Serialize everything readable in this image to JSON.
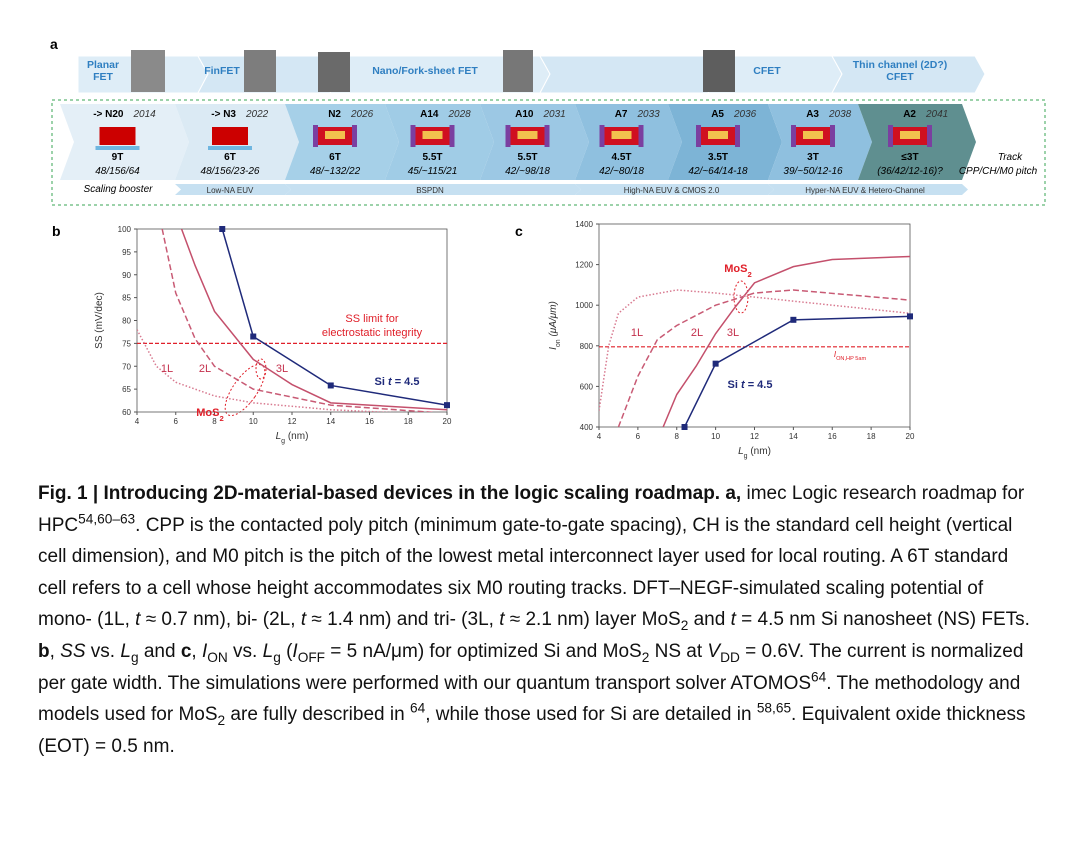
{
  "roadmap": {
    "label": "a",
    "generations": [
      [
        "Planar",
        "FET"
      ],
      [
        "FinFET"
      ],
      [
        "Nano/Fork-sheet FET"
      ],
      [
        "CFET"
      ],
      [
        "Thin channel (2D?)",
        "CFET"
      ]
    ],
    "nodes": [
      {
        "name": "-> N20",
        "year": "2014",
        "track": "9T",
        "pitch": "48/156/64"
      },
      {
        "name": "-> N3",
        "year": "2022",
        "track": "6T",
        "pitch": "48/156/23-26"
      },
      {
        "name": "N2",
        "year": "2026",
        "track": "6T",
        "pitch": "48/~132/22"
      },
      {
        "name": "A14",
        "year": "2028",
        "track": "5.5T",
        "pitch": "45/~115/21"
      },
      {
        "name": "A10",
        "year": "2031",
        "track": "5.5T",
        "pitch": "42/~98/18"
      },
      {
        "name": "A7",
        "year": "2033",
        "track": "4.5T",
        "pitch": "42/~80/18"
      },
      {
        "name": "A5",
        "year": "2036",
        "track": "3.5T",
        "pitch": "42/~64/14-18"
      },
      {
        "name": "A3",
        "year": "2038",
        "track": "3T",
        "pitch": "39/~50/12-16"
      },
      {
        "name": "A2",
        "year": "2041",
        "track": "≤3T",
        "pitch": "(36/42/12-16)?"
      }
    ],
    "row_labels": [
      "Track",
      "CPP/CH/M0 pitch"
    ],
    "boosters": [
      "Scaling booster",
      "Low-NA EUV",
      "BSPDN",
      "High-NA EUV & CMOS 2.0",
      "Hyper-NA EUV & Hetero-Channel"
    ]
  },
  "chart_data": [
    {
      "type": "line",
      "label": "b",
      "xlabel": [
        {
          "text": "L",
          "style": "i"
        },
        {
          "text": "g",
          "style": "sub"
        },
        {
          "text": " (nm)"
        }
      ],
      "ylabel": [
        {
          "text": "SS (mV/dec)"
        }
      ],
      "xlim": [
        4,
        20
      ],
      "xticks": [
        4,
        6,
        8,
        10,
        12,
        14,
        16,
        18,
        20
      ],
      "ylim": [
        60,
        100
      ],
      "yticks": [
        60,
        65,
        70,
        75,
        80,
        85,
        90,
        95,
        100
      ],
      "hline": 75,
      "hline_color": "#e0202a",
      "series": [
        {
          "color": "#1f2a7a",
          "dash": "solid",
          "marker": "square",
          "x": [
            8.4,
            10,
            14,
            20
          ],
          "values": [
            100,
            76.5,
            65.8,
            61.5
          ]
        },
        {
          "color": "#c4506c",
          "dash": "solid",
          "x": [
            6.3,
            7,
            8,
            10,
            12,
            14,
            20
          ],
          "values": [
            100,
            92,
            82,
            71.5,
            66,
            62,
            60.5
          ]
        },
        {
          "color": "#c85a74",
          "dash": "dashed",
          "x": [
            5.3,
            6,
            7,
            8,
            10,
            14,
            20
          ],
          "values": [
            100,
            86,
            76,
            70,
            65,
            61.5,
            59.7
          ]
        },
        {
          "color": "#d87a90",
          "dash": "dotted",
          "x": [
            4,
            5,
            6,
            8,
            10,
            14,
            20
          ],
          "values": [
            78,
            70,
            66.5,
            63.5,
            62,
            60.5,
            59.3
          ]
        }
      ],
      "annotations": [
        {
          "color": "#e0202a",
          "runs": [
            {
              "text": "SS limit for"
            }
          ]
        },
        {
          "color": "#e0202a",
          "runs": [
            {
              "text": "electrostatic integrity"
            }
          ]
        },
        {
          "color": "#c4304c",
          "runs": [
            {
              "text": "1L"
            }
          ]
        },
        {
          "color": "#c4304c",
          "runs": [
            {
              "text": "2L"
            }
          ]
        },
        {
          "color": "#c4304c",
          "runs": [
            {
              "text": "3L"
            }
          ]
        },
        {
          "color": "#1f2a7a",
          "bold": true,
          "runs": [
            {
              "text": "Si "
            },
            {
              "text": "t",
              "style": "i"
            },
            {
              "text": " = 4.5"
            }
          ]
        },
        {
          "color": "#e0202a",
          "bold": true,
          "runs": [
            {
              "text": "MoS"
            },
            {
              "text": "2",
              "style": "sub"
            }
          ]
        }
      ]
    },
    {
      "type": "line",
      "label": "c",
      "xlabel": [
        {
          "text": "L",
          "style": "i"
        },
        {
          "text": "g",
          "style": "sub"
        },
        {
          "text": " (nm)"
        }
      ],
      "ylabel": [
        {
          "text": "I",
          "style": "i"
        },
        {
          "text": "on",
          "style": "sub"
        },
        {
          "text": " (μA/μm)",
          "style": "i"
        }
      ],
      "xlim": [
        4,
        20
      ],
      "xticks": [
        4,
        6,
        8,
        10,
        12,
        14,
        16,
        18,
        20
      ],
      "ylim": [
        400,
        1400
      ],
      "yticks": [
        400,
        600,
        800,
        1000,
        1200,
        1400
      ],
      "hline": 795,
      "hline_color": "#e0202a",
      "series": [
        {
          "color": "#1f2a7a",
          "dash": "solid",
          "marker": "square",
          "x": [
            8.4,
            10,
            14,
            20
          ],
          "values": [
            400,
            712,
            928,
            945
          ]
        },
        {
          "color": "#c4506c",
          "dash": "solid",
          "x": [
            7.3,
            8,
            9,
            10,
            11,
            12,
            14,
            16,
            20
          ],
          "values": [
            400,
            560,
            700,
            860,
            990,
            1110,
            1190,
            1225,
            1240
          ]
        },
        {
          "color": "#c85a74",
          "dash": "dashed",
          "x": [
            5,
            6,
            7,
            8,
            10,
            12,
            14,
            20
          ],
          "values": [
            400,
            650,
            830,
            900,
            1000,
            1060,
            1075,
            1025
          ]
        },
        {
          "color": "#d87a90",
          "dash": "dotted",
          "x": [
            4,
            4.5,
            5,
            6,
            8,
            10,
            14,
            20
          ],
          "values": [
            480,
            800,
            960,
            1040,
            1075,
            1060,
            1020,
            960
          ]
        }
      ],
      "annotations": [
        {
          "color": "#e0202a",
          "bold": true,
          "runs": [
            {
              "text": "MoS"
            },
            {
              "text": "2",
              "style": "sub"
            }
          ]
        },
        {
          "color": "#c4304c",
          "runs": [
            {
              "text": "1L"
            }
          ]
        },
        {
          "color": "#c4304c",
          "runs": [
            {
              "text": "2L"
            }
          ]
        },
        {
          "color": "#c4304c",
          "runs": [
            {
              "text": "3L"
            }
          ]
        },
        {
          "color": "#e0202a",
          "small": true,
          "runs": [
            {
              "text": "I",
              "style": "i"
            },
            {
              "text": "ON,HP 5am",
              "style": "sub"
            }
          ]
        },
        {
          "color": "#1f2a7a",
          "bold": true,
          "runs": [
            {
              "text": "Si "
            },
            {
              "text": "t",
              "style": "i"
            },
            {
              "text": " = 4.5"
            }
          ]
        }
      ]
    }
  ],
  "caption": {
    "runs": [
      {
        "text": "Fig. 1 | Introducing 2D-material-based devices in the logic scaling roadmap. a,",
        "style": "b"
      },
      {
        "text": " imec Logic research roadmap for HPC"
      },
      {
        "text": "54,60–63",
        "style": "sup"
      },
      {
        "text": ". CPP is the contacted poly pitch (minimum gate-to-gate spacing), CH is the standard cell height (vertical cell dimension), and M0 pitch is the pitch of the lowest metal interconnect layer used for local routing. A 6T standard cell refers to a cell whose height accommodates six M0 routing tracks. DFT–NEGF-simulated scaling potential of mono- (1L, "
      },
      {
        "text": "t",
        "style": "i"
      },
      {
        "text": " ≈ 0.7 nm), bi- (2L, "
      },
      {
        "text": "t",
        "style": "i"
      },
      {
        "text": " ≈ 1.4 nm) and tri- (3L, "
      },
      {
        "text": "t",
        "style": "i"
      },
      {
        "text": " ≈ 2.1 nm) layer MoS"
      },
      {
        "text": "2",
        "style": "sub"
      },
      {
        "text": " and "
      },
      {
        "text": "t",
        "style": "i"
      },
      {
        "text": " = 4.5 nm Si nanosheet (NS) FETs. "
      },
      {
        "text": "b",
        "style": "b"
      },
      {
        "text": ", "
      },
      {
        "text": "SS",
        "style": "i"
      },
      {
        "text": " vs. "
      },
      {
        "text": "L",
        "style": "i"
      },
      {
        "text": "g",
        "style": "sub"
      },
      {
        "text": " and "
      },
      {
        "text": "c",
        "style": "b"
      },
      {
        "text": ", "
      },
      {
        "text": "I",
        "style": "i"
      },
      {
        "text": "ON",
        "style": "sub"
      },
      {
        "text": " vs. "
      },
      {
        "text": "L",
        "style": "i"
      },
      {
        "text": "g",
        "style": "sub"
      },
      {
        "text": " ("
      },
      {
        "text": "I",
        "style": "i"
      },
      {
        "text": "OFF",
        "style": "sub"
      },
      {
        "text": " = 5 nA/μm) for optimized Si and MoS"
      },
      {
        "text": "2",
        "style": "sub"
      },
      {
        "text": " NS at "
      },
      {
        "text": "V",
        "style": "i"
      },
      {
        "text": "DD",
        "style": "sub"
      },
      {
        "text": " = 0.6V. The current is normalized per gate width. The simulations were performed with our quantum transport solver ATOMOS"
      },
      {
        "text": "64",
        "style": "sup"
      },
      {
        "text": ". The methodology and models used for MoS"
      },
      {
        "text": "2",
        "style": "sub"
      },
      {
        "text": " are fully described in "
      },
      {
        "text": "64",
        "style": "sup"
      },
      {
        "text": ", while those used for Si are detailed in "
      },
      {
        "text": "58,65",
        "style": "sup"
      },
      {
        "text": ". Equivalent oxide thickness (EOT) = 0.5 nm."
      }
    ]
  }
}
